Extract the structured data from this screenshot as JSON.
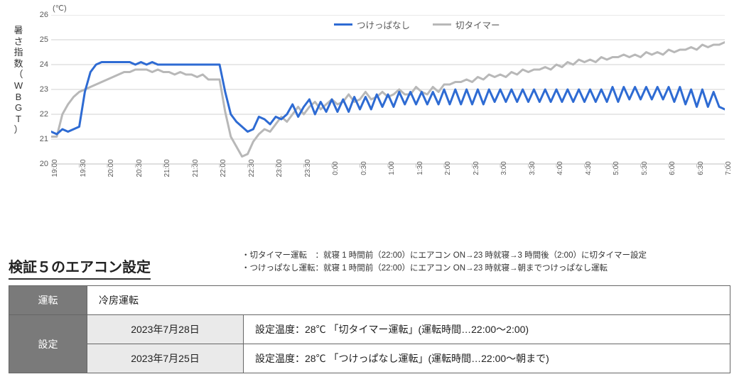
{
  "chart": {
    "type": "line",
    "y_unit": "(℃)",
    "y_axis_title": "暑さ指数（WBGT）",
    "ylim": [
      20,
      26
    ],
    "ytick_step": 1,
    "x_ticks": [
      "19:00",
      "19:30",
      "20:00",
      "20:30",
      "21:00",
      "21:30",
      "22:00",
      "22:30",
      "23:00",
      "23:30",
      "0:00",
      "0:30",
      "1:00",
      "1:30",
      "2:00",
      "2:30",
      "3:00",
      "3:30",
      "4:00",
      "4:30",
      "5:00",
      "5:30",
      "6:00",
      "6:30",
      "7:00"
    ],
    "grid_color": "#d0d0d0",
    "axis_color": "#bfbfbf",
    "background_color": "#ffffff",
    "legend": {
      "series1": "つけっぱなし",
      "series2": "切タイマー"
    },
    "series": [
      {
        "name": "つけっぱなし",
        "color": "#2e6bd3",
        "line_width": 3,
        "values": [
          21.3,
          21.2,
          21.4,
          21.3,
          21.4,
          21.5,
          22.9,
          23.7,
          24.0,
          24.1,
          24.1,
          24.1,
          24.1,
          24.1,
          24.1,
          24.0,
          24.1,
          24.0,
          24.1,
          24.0,
          24.0,
          24.0,
          24.0,
          24.0,
          24.0,
          24.0,
          24.0,
          24.0,
          24.0,
          24.0,
          24.0,
          22.9,
          22.0,
          21.7,
          21.5,
          21.3,
          21.4,
          21.9,
          21.8,
          21.6,
          21.9,
          21.8,
          22.0,
          22.4,
          21.9,
          22.3,
          22.6,
          22.0,
          22.5,
          22.1,
          22.6,
          22.1,
          22.6,
          22.1,
          22.7,
          22.2,
          22.7,
          22.2,
          22.8,
          22.3,
          22.8,
          22.3,
          22.9,
          22.4,
          22.9,
          22.4,
          22.9,
          22.4,
          22.9,
          22.4,
          23.0,
          22.4,
          23.0,
          22.4,
          23.0,
          22.4,
          23.0,
          22.4,
          23.0,
          22.5,
          23.0,
          22.5,
          23.0,
          22.5,
          23.0,
          22.5,
          23.0,
          22.5,
          23.0,
          22.5,
          23.0,
          22.5,
          23.0,
          22.5,
          23.0,
          22.5,
          23.0,
          22.5,
          23.0,
          22.5,
          23.1,
          22.5,
          23.1,
          22.6,
          23.1,
          22.6,
          23.1,
          22.6,
          23.1,
          22.6,
          23.1,
          22.5,
          23.1,
          22.4,
          23.0,
          22.3,
          23.0,
          22.3,
          22.9,
          22.3,
          22.2
        ]
      },
      {
        "name": "切タイマー",
        "color": "#b8b8b8",
        "line_width": 3,
        "values": [
          21.1,
          21.1,
          22.0,
          22.4,
          22.7,
          22.9,
          23.0,
          23.1,
          23.2,
          23.3,
          23.4,
          23.5,
          23.6,
          23.7,
          23.7,
          23.8,
          23.8,
          23.8,
          23.7,
          23.8,
          23.7,
          23.7,
          23.6,
          23.7,
          23.6,
          23.6,
          23.5,
          23.6,
          23.4,
          23.4,
          23.4,
          22.1,
          21.1,
          20.7,
          20.3,
          20.4,
          20.9,
          21.2,
          21.4,
          21.3,
          21.6,
          21.9,
          21.7,
          22.0,
          22.3,
          22.0,
          22.3,
          22.5,
          22.2,
          22.4,
          22.6,
          22.4,
          22.5,
          22.8,
          22.5,
          22.6,
          22.9,
          22.6,
          22.7,
          22.9,
          22.7,
          22.8,
          23.0,
          22.8,
          22.8,
          23.1,
          22.9,
          22.8,
          23.1,
          22.9,
          23.2,
          23.2,
          23.3,
          23.3,
          23.4,
          23.3,
          23.5,
          23.4,
          23.6,
          23.5,
          23.6,
          23.5,
          23.7,
          23.6,
          23.8,
          23.7,
          23.8,
          23.8,
          23.9,
          23.8,
          24.0,
          23.9,
          24.1,
          24.0,
          24.2,
          24.1,
          24.2,
          24.1,
          24.3,
          24.2,
          24.3,
          24.3,
          24.4,
          24.3,
          24.4,
          24.3,
          24.5,
          24.4,
          24.5,
          24.4,
          24.6,
          24.5,
          24.6,
          24.6,
          24.7,
          24.6,
          24.8,
          24.7,
          24.8,
          24.8,
          24.9
        ]
      }
    ]
  },
  "section": {
    "title": "検証５のエアコン設定",
    "notes_line1": "・切タイマー運転　：就寝 1 時間前（22:00）にエアコン ON→23 時就寝→3 時間後（2:00）に切タイマー設定",
    "notes_line2": "・つけっぱなし運転：就寝 1 時間前（22:00）にエアコン ON→23 時就寝→朝までつけっぱなし運転"
  },
  "table": {
    "header_mode": "運転",
    "mode_value": "冷房運転",
    "header_setting": "設定",
    "rows": [
      {
        "date": "2023年7月28日",
        "detail": "設定温度：28℃ 「切タイマー運転」(運転時間…22:00～2:00)"
      },
      {
        "date": "2023年7月25日",
        "detail": "設定温度：28℃ 「つけっぱなし運転」(運転時間…22:00～朝まで)"
      }
    ]
  }
}
